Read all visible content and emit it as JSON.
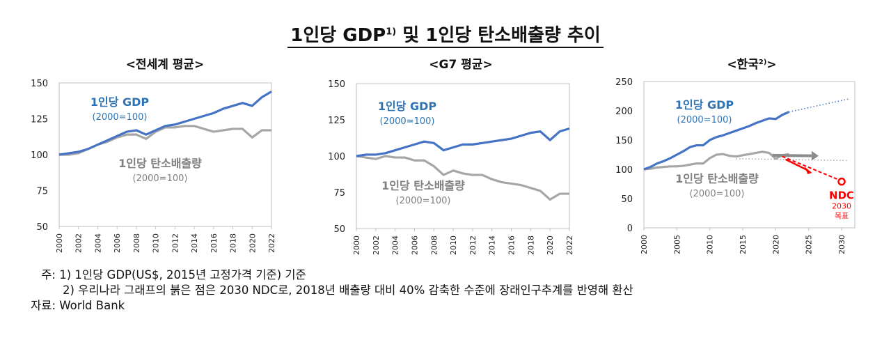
{
  "title": {
    "main": "1인당 GDP",
    "sup": "1)",
    "rest": " 및 1인당 탄소배출량 추이"
  },
  "colors": {
    "gdp": "#4472c4",
    "co2": "#a6a6a6",
    "ndc": "#ff0000",
    "label_gdp": "#2e74b5",
    "label_co2": "#808080"
  },
  "chart_data": [
    {
      "type": "line",
      "title": "<전세계 평균>",
      "ylim": [
        50,
        150
      ],
      "yticks": [
        50,
        75,
        100,
        125,
        150
      ],
      "xlim": [
        2000,
        2022
      ],
      "xticks": [
        "2000",
        "2002",
        "2004",
        "2006",
        "2008",
        "2010",
        "2012",
        "2014",
        "2016",
        "2018",
        "2020",
        "2022"
      ],
      "series": [
        {
          "name": "1인당 GDP",
          "sub": "(2000=100)",
          "x": [
            2000,
            2001,
            2002,
            2003,
            2004,
            2005,
            2006,
            2007,
            2008,
            2009,
            2010,
            2011,
            2012,
            2013,
            2014,
            2015,
            2016,
            2017,
            2018,
            2019,
            2020,
            2021,
            2022
          ],
          "values": [
            100,
            101,
            102,
            104,
            107,
            110,
            113,
            116,
            117,
            114,
            117,
            120,
            121,
            123,
            125,
            127,
            129,
            132,
            134,
            136,
            134,
            140,
            144
          ]
        },
        {
          "name": "1인당 탄소배출량",
          "sub": "(2000=100)",
          "x": [
            2000,
            2001,
            2002,
            2003,
            2004,
            2005,
            2006,
            2007,
            2008,
            2009,
            2010,
            2011,
            2012,
            2013,
            2014,
            2015,
            2016,
            2017,
            2018,
            2019,
            2020,
            2021,
            2022
          ],
          "values": [
            100,
            100,
            101,
            104,
            107,
            109,
            112,
            114,
            114,
            111,
            116,
            119,
            119,
            120,
            120,
            118,
            116,
            117,
            118,
            118,
            112,
            117,
            117
          ]
        }
      ]
    },
    {
      "type": "line",
      "title": "<G7 평균>",
      "ylim": [
        50,
        150
      ],
      "yticks": [
        50,
        75,
        100,
        125,
        150
      ],
      "xlim": [
        2000,
        2022
      ],
      "xticks": [
        "2000",
        "2002",
        "2004",
        "2006",
        "2008",
        "2010",
        "2012",
        "2014",
        "2016",
        "2018",
        "2020",
        "2022"
      ],
      "series": [
        {
          "name": "1인당 GDP",
          "sub": "(2000=100)",
          "x": [
            2000,
            2001,
            2002,
            2003,
            2004,
            2005,
            2006,
            2007,
            2008,
            2009,
            2010,
            2011,
            2012,
            2013,
            2014,
            2015,
            2016,
            2017,
            2018,
            2019,
            2020,
            2021,
            2022
          ],
          "values": [
            100,
            101,
            101,
            102,
            104,
            106,
            108,
            110,
            109,
            104,
            106,
            108,
            108,
            109,
            110,
            111,
            112,
            114,
            116,
            117,
            111,
            117,
            119
          ]
        },
        {
          "name": "1인당 탄소배출량",
          "sub": "(2000=100)",
          "x": [
            2000,
            2001,
            2002,
            2003,
            2004,
            2005,
            2006,
            2007,
            2008,
            2009,
            2010,
            2011,
            2012,
            2013,
            2014,
            2015,
            2016,
            2017,
            2018,
            2019,
            2020,
            2021,
            2022
          ],
          "values": [
            100,
            99,
            98,
            100,
            99,
            99,
            97,
            97,
            93,
            87,
            90,
            88,
            87,
            87,
            84,
            82,
            81,
            80,
            78,
            76,
            70,
            74,
            74
          ]
        }
      ]
    },
    {
      "type": "line",
      "title": "<한국",
      "title_sup": "2)",
      "title_end": ">",
      "ylim": [
        0,
        250
      ],
      "yticks": [
        0,
        50,
        100,
        150,
        200,
        250
      ],
      "xlim": [
        2000,
        2032
      ],
      "xticks": [
        "2000",
        "2005",
        "2010",
        "2015",
        "2020",
        "2025",
        "2030"
      ],
      "series": [
        {
          "name": "1인당 GDP",
          "sub": "(2000=100)",
          "x": [
            2000,
            2001,
            2002,
            2003,
            2004,
            2005,
            2006,
            2007,
            2008,
            2009,
            2010,
            2011,
            2012,
            2013,
            2014,
            2015,
            2016,
            2017,
            2018,
            2019,
            2020,
            2021,
            2022
          ],
          "values": [
            100,
            104,
            110,
            114,
            119,
            125,
            131,
            138,
            141,
            141,
            150,
            155,
            158,
            162,
            166,
            170,
            174,
            179,
            183,
            187,
            186,
            193,
            198
          ]
        },
        {
          "name": "1인당 탄소배출량",
          "sub": "(2000=100)",
          "x": [
            2000,
            2001,
            2002,
            2003,
            2004,
            2005,
            2006,
            2007,
            2008,
            2009,
            2010,
            2011,
            2012,
            2013,
            2014,
            2015,
            2016,
            2017,
            2018,
            2019,
            2020,
            2021,
            2022
          ],
          "values": [
            100,
            101,
            103,
            104,
            105,
            105,
            106,
            108,
            110,
            110,
            119,
            125,
            126,
            123,
            122,
            124,
            126,
            128,
            130,
            128,
            118,
            124,
            126
          ]
        }
      ],
      "gdp_trend": {
        "x": [
          2022,
          2031
        ],
        "values": [
          198,
          220
        ]
      },
      "co2_trend": {
        "x": [
          2014,
          2031
        ],
        "values": [
          118,
          115
        ]
      },
      "ndc_point": {
        "label": "NDC",
        "note1": "2030",
        "note2": "목표",
        "x": 2030,
        "value": 79
      }
    }
  ],
  "notes": {
    "label_note": "주:",
    "note1": "1) 1인당 GDP(US$, 2015년 고정가격 기준) 기준",
    "note2": "2) 우리나라 그래프의 붉은 점은 2030 NDC로, 2018년 배출량 대비 40% 감축한 수준에 장래인구추계를 반영해 환산",
    "label_source": "자료:",
    "source": "World Bank"
  }
}
